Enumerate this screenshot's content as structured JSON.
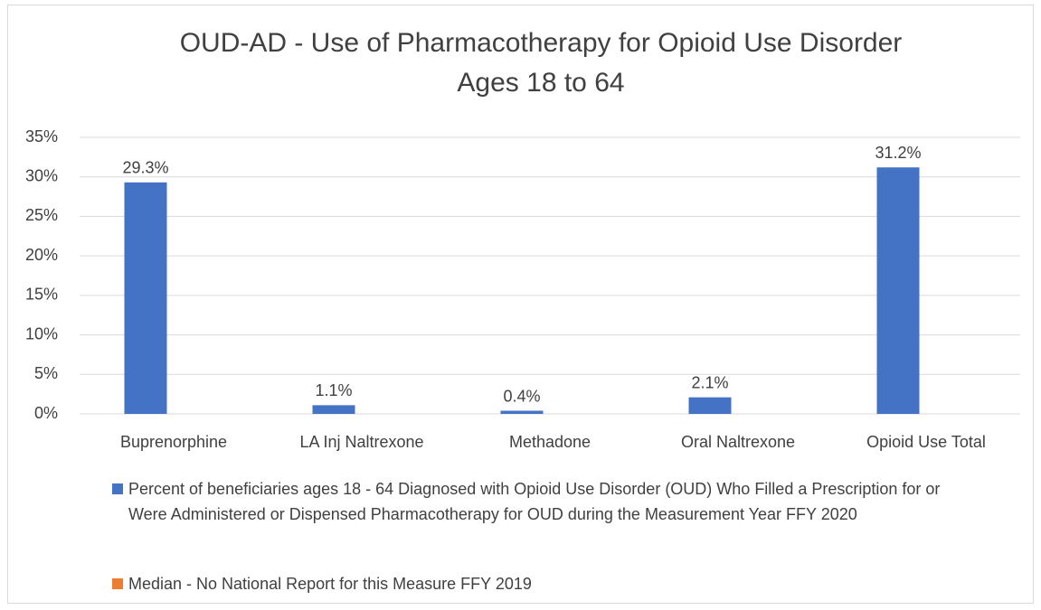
{
  "chart_data": {
    "type": "bar",
    "title": [
      "OUD-AD - Use of Pharmacotherapy for Opioid Use Disorder",
      "Ages 18 to 64"
    ],
    "categories": [
      "Buprenorphine",
      "LA Inj Naltrexone",
      "Methadone",
      "Oral Naltrexone",
      "Opioid Use Total"
    ],
    "series": [
      {
        "name": "Percent of beneficiaries ages 18 - 64 Diagnosed with Opioid Use Disorder (OUD) Who Filled a Prescription for or Were Administered or Dispensed Pharmacotherapy for OUD during the Measurement Year FFY 2020",
        "color": "#4472c4",
        "values": [
          29.3,
          1.1,
          0.4,
          2.1,
          31.2
        ],
        "value_labels": [
          "29.3%",
          "1.1%",
          "0.4%",
          "2.1%",
          "31.2%"
        ]
      },
      {
        "name": "Median -  No National Report for this Measure FFY 2019",
        "color": "#ed7d31",
        "values": [
          null,
          null,
          null,
          null,
          null
        ]
      }
    ],
    "ylim": [
      0,
      35
    ],
    "yticks": [
      {
        "value": 0,
        "label": "0%"
      },
      {
        "value": 5,
        "label": "5%"
      },
      {
        "value": 10,
        "label": "10%"
      },
      {
        "value": 15,
        "label": "15%"
      },
      {
        "value": 20,
        "label": "20%"
      },
      {
        "value": 25,
        "label": "25%"
      },
      {
        "value": 30,
        "label": "30%"
      },
      {
        "value": 35,
        "label": "35%"
      }
    ],
    "grid": true,
    "legend": "bottom"
  }
}
